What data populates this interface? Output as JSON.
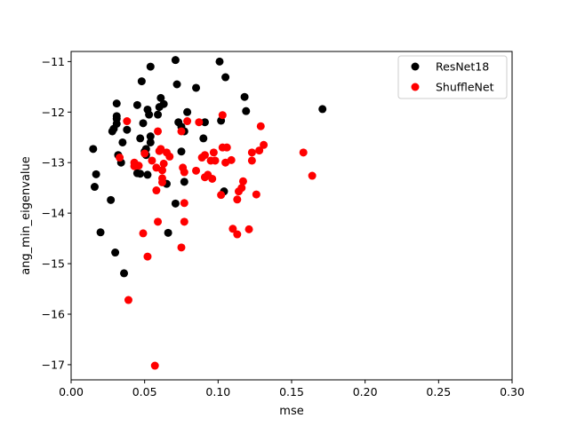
{
  "chart_data": {
    "type": "scatter",
    "xlabel": "mse",
    "ylabel": "ang_min_eigenvalue",
    "xlim": [
      0.0,
      0.3
    ],
    "ylim": [
      -17.3,
      -10.8
    ],
    "x_ticks": [
      0.0,
      0.05,
      0.1,
      0.15,
      0.2,
      0.25,
      0.3
    ],
    "x_tick_labels": [
      "0.00",
      "0.05",
      "0.10",
      "0.15",
      "0.20",
      "0.25",
      "0.30"
    ],
    "y_ticks": [
      -17,
      -16,
      -15,
      -14,
      -13,
      -12,
      -11
    ],
    "y_tick_labels": [
      "−17",
      "−16",
      "−15",
      "−14",
      "−13",
      "−12",
      "−11"
    ],
    "grid": false,
    "legend_position": "top-right",
    "series": [
      {
        "name": "ResNet18",
        "color": "#000000",
        "points": [
          [
            0.015,
            -12.73
          ],
          [
            0.016,
            -13.48
          ],
          [
            0.017,
            -13.23
          ],
          [
            0.02,
            -14.38
          ],
          [
            0.027,
            -13.74
          ],
          [
            0.028,
            -12.38
          ],
          [
            0.029,
            -12.33
          ],
          [
            0.03,
            -14.78
          ],
          [
            0.031,
            -12.23
          ],
          [
            0.031,
            -11.83
          ],
          [
            0.031,
            -12.08
          ],
          [
            0.031,
            -12.13
          ],
          [
            0.032,
            -12.85
          ],
          [
            0.034,
            -13.0
          ],
          [
            0.035,
            -12.6
          ],
          [
            0.036,
            -15.19
          ],
          [
            0.038,
            -12.35
          ],
          [
            0.045,
            -11.86
          ],
          [
            0.045,
            -13.21
          ],
          [
            0.047,
            -12.52
          ],
          [
            0.047,
            -13.22
          ],
          [
            0.048,
            -11.39
          ],
          [
            0.049,
            -12.22
          ],
          [
            0.05,
            -12.78
          ],
          [
            0.051,
            -12.85
          ],
          [
            0.051,
            -12.73
          ],
          [
            0.052,
            -11.95
          ],
          [
            0.052,
            -13.24
          ],
          [
            0.053,
            -12.05
          ],
          [
            0.054,
            -12.48
          ],
          [
            0.054,
            -12.6
          ],
          [
            0.054,
            -11.1
          ],
          [
            0.059,
            -12.05
          ],
          [
            0.06,
            -11.9
          ],
          [
            0.061,
            -11.72
          ],
          [
            0.063,
            -11.84
          ],
          [
            0.065,
            -13.42
          ],
          [
            0.066,
            -14.39
          ],
          [
            0.071,
            -13.81
          ],
          [
            0.071,
            -10.97
          ],
          [
            0.072,
            -11.45
          ],
          [
            0.073,
            -12.2
          ],
          [
            0.075,
            -12.29
          ],
          [
            0.075,
            -12.78
          ],
          [
            0.077,
            -12.38
          ],
          [
            0.077,
            -13.38
          ],
          [
            0.079,
            -12.0
          ],
          [
            0.085,
            -11.52
          ],
          [
            0.09,
            -12.52
          ],
          [
            0.091,
            -12.2
          ],
          [
            0.101,
            -11.0
          ],
          [
            0.102,
            -12.17
          ],
          [
            0.104,
            -13.57
          ],
          [
            0.105,
            -11.31
          ],
          [
            0.118,
            -11.7
          ],
          [
            0.119,
            -11.98
          ],
          [
            0.171,
            -11.94
          ]
        ]
      },
      {
        "name": "ShuffleNet",
        "color": "#ff0000",
        "points": [
          [
            0.033,
            -12.9
          ],
          [
            0.038,
            -12.18
          ],
          [
            0.039,
            -15.72
          ],
          [
            0.043,
            -13.0
          ],
          [
            0.043,
            -13.07
          ],
          [
            0.046,
            -13.06
          ],
          [
            0.049,
            -14.4
          ],
          [
            0.05,
            -12.82
          ],
          [
            0.052,
            -14.86
          ],
          [
            0.055,
            -12.96
          ],
          [
            0.057,
            -17.02
          ],
          [
            0.058,
            -13.55
          ],
          [
            0.058,
            -13.1
          ],
          [
            0.059,
            -12.38
          ],
          [
            0.059,
            -14.17
          ],
          [
            0.06,
            -12.77
          ],
          [
            0.061,
            -12.73
          ],
          [
            0.062,
            -13.15
          ],
          [
            0.062,
            -13.31
          ],
          [
            0.062,
            -13.39
          ],
          [
            0.063,
            -13.02
          ],
          [
            0.065,
            -12.8
          ],
          [
            0.067,
            -12.88
          ],
          [
            0.075,
            -12.38
          ],
          [
            0.075,
            -14.68
          ],
          [
            0.076,
            -13.1
          ],
          [
            0.077,
            -13.19
          ],
          [
            0.077,
            -13.8
          ],
          [
            0.077,
            -14.17
          ],
          [
            0.079,
            -12.18
          ],
          [
            0.085,
            -13.16
          ],
          [
            0.087,
            -12.2
          ],
          [
            0.089,
            -12.9
          ],
          [
            0.091,
            -12.85
          ],
          [
            0.091,
            -13.29
          ],
          [
            0.093,
            -13.24
          ],
          [
            0.095,
            -12.96
          ],
          [
            0.096,
            -13.32
          ],
          [
            0.097,
            -12.8
          ],
          [
            0.098,
            -12.96
          ],
          [
            0.102,
            -13.64
          ],
          [
            0.103,
            -12.06
          ],
          [
            0.103,
            -12.7
          ],
          [
            0.105,
            -13.0
          ],
          [
            0.106,
            -12.7
          ],
          [
            0.109,
            -12.95
          ],
          [
            0.11,
            -14.31
          ],
          [
            0.113,
            -14.42
          ],
          [
            0.113,
            -13.73
          ],
          [
            0.114,
            -13.57
          ],
          [
            0.116,
            -13.5
          ],
          [
            0.117,
            -13.37
          ],
          [
            0.121,
            -14.32
          ],
          [
            0.123,
            -12.8
          ],
          [
            0.123,
            -12.96
          ],
          [
            0.126,
            -13.63
          ],
          [
            0.128,
            -12.76
          ],
          [
            0.129,
            -12.28
          ],
          [
            0.131,
            -12.65
          ],
          [
            0.158,
            -12.8
          ],
          [
            0.164,
            -13.26
          ]
        ]
      }
    ]
  }
}
